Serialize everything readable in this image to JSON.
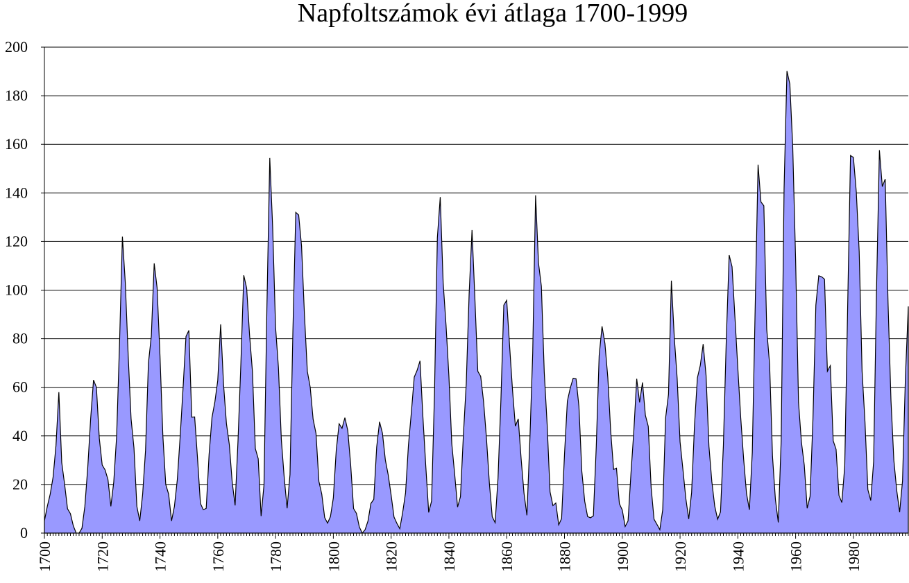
{
  "chart_data": {
    "type": "area",
    "title": "Napfoltszámok évi átlaga 1700-1999",
    "xlabel": "",
    "ylabel": "",
    "xlim": [
      1700,
      1999
    ],
    "ylim": [
      0,
      200
    ],
    "grid": true,
    "legend": "none",
    "fill_color": "#9999ff",
    "line_color": "#000000",
    "x_ticks": [
      1700,
      1720,
      1740,
      1760,
      1780,
      1800,
      1820,
      1840,
      1860,
      1880,
      1900,
      1920,
      1940,
      1960,
      1980
    ],
    "y_ticks": [
      0,
      20,
      40,
      60,
      80,
      100,
      120,
      140,
      160,
      180,
      200
    ],
    "x": [
      1700,
      1701,
      1702,
      1703,
      1704,
      1705,
      1706,
      1707,
      1708,
      1709,
      1710,
      1711,
      1712,
      1713,
      1714,
      1715,
      1716,
      1717,
      1718,
      1719,
      1720,
      1721,
      1722,
      1723,
      1724,
      1725,
      1726,
      1727,
      1728,
      1729,
      1730,
      1731,
      1732,
      1733,
      1734,
      1735,
      1736,
      1737,
      1738,
      1739,
      1740,
      1741,
      1742,
      1743,
      1744,
      1745,
      1746,
      1747,
      1748,
      1749,
      1750,
      1751,
      1752,
      1753,
      1754,
      1755,
      1756,
      1757,
      1758,
      1759,
      1760,
      1761,
      1762,
      1763,
      1764,
      1765,
      1766,
      1767,
      1768,
      1769,
      1770,
      1771,
      1772,
      1773,
      1774,
      1775,
      1776,
      1777,
      1778,
      1779,
      1780,
      1781,
      1782,
      1783,
      1784,
      1785,
      1786,
      1787,
      1788,
      1789,
      1790,
      1791,
      1792,
      1793,
      1794,
      1795,
      1796,
      1797,
      1798,
      1799,
      1800,
      1801,
      1802,
      1803,
      1804,
      1805,
      1806,
      1807,
      1808,
      1809,
      1810,
      1811,
      1812,
      1813,
      1814,
      1815,
      1816,
      1817,
      1818,
      1819,
      1820,
      1821,
      1822,
      1823,
      1824,
      1825,
      1826,
      1827,
      1828,
      1829,
      1830,
      1831,
      1832,
      1833,
      1834,
      1835,
      1836,
      1837,
      1838,
      1839,
      1840,
      1841,
      1842,
      1843,
      1844,
      1845,
      1846,
      1847,
      1848,
      1849,
      1850,
      1851,
      1852,
      1853,
      1854,
      1855,
      1856,
      1857,
      1858,
      1859,
      1860,
      1861,
      1862,
      1863,
      1864,
      1865,
      1866,
      1867,
      1868,
      1869,
      1870,
      1871,
      1872,
      1873,
      1874,
      1875,
      1876,
      1877,
      1878,
      1879,
      1880,
      1881,
      1882,
      1883,
      1884,
      1885,
      1886,
      1887,
      1888,
      1889,
      1890,
      1891,
      1892,
      1893,
      1894,
      1895,
      1896,
      1897,
      1898,
      1899,
      1900,
      1901,
      1902,
      1903,
      1904,
      1905,
      1906,
      1907,
      1908,
      1909,
      1910,
      1911,
      1912,
      1913,
      1914,
      1915,
      1916,
      1917,
      1918,
      1919,
      1920,
      1921,
      1922,
      1923,
      1924,
      1925,
      1926,
      1927,
      1928,
      1929,
      1930,
      1931,
      1932,
      1933,
      1934,
      1935,
      1936,
      1937,
      1938,
      1939,
      1940,
      1941,
      1942,
      1943,
      1944,
      1945,
      1946,
      1947,
      1948,
      1949,
      1950,
      1951,
      1952,
      1953,
      1954,
      1955,
      1956,
      1957,
      1958,
      1959,
      1960,
      1961,
      1962,
      1963,
      1964,
      1965,
      1966,
      1967,
      1968,
      1969,
      1970,
      1971,
      1972,
      1973,
      1974,
      1975,
      1976,
      1977,
      1978,
      1979,
      1980,
      1981,
      1982,
      1983,
      1984,
      1985,
      1986,
      1987,
      1988,
      1989,
      1990,
      1991,
      1992,
      1993,
      1994,
      1995,
      1996,
      1997,
      1998,
      1999
    ],
    "series": [
      {
        "values": [
          5,
          11,
          16,
          23,
          36,
          58,
          29,
          20,
          10,
          8,
          3,
          0,
          0,
          2,
          11,
          27,
          47,
          63,
          60,
          39,
          28,
          26,
          22,
          11,
          21,
          40,
          78,
          122,
          103,
          73,
          47,
          35,
          11,
          5,
          16,
          34,
          70,
          81,
          111,
          101,
          73,
          40,
          20,
          16,
          5,
          11,
          22,
          40,
          60,
          80.9,
          83.4,
          47.7,
          47.8,
          30.7,
          12.2,
          9.6,
          10.2,
          32.4,
          47.6,
          54,
          62.9,
          85.9,
          61.2,
          45.1,
          36.4,
          20.9,
          11.4,
          37.8,
          69.8,
          106.1,
          100.8,
          81.6,
          66.5,
          34.8,
          30.6,
          7,
          19.8,
          92.5,
          154.4,
          125.9,
          84.8,
          68.1,
          38.5,
          22.8,
          10.2,
          24.1,
          82.9,
          132,
          130.9,
          118.1,
          89.9,
          66.6,
          60,
          46.9,
          41,
          21.3,
          16,
          6.4,
          4.1,
          6.8,
          14.5,
          34,
          45,
          43.1,
          47.5,
          42.2,
          28.1,
          10.1,
          8.1,
          2.5,
          0,
          1.4,
          5,
          12.2,
          13.9,
          35.4,
          45.8,
          41.1,
          30.1,
          23.9,
          15.6,
          6.6,
          4,
          1.8,
          8.5,
          16.6,
          36.3,
          49.6,
          64.2,
          67,
          70.9,
          47.8,
          27.5,
          8.5,
          13.2,
          56.9,
          121.5,
          138.3,
          103.2,
          85.7,
          64.6,
          36.7,
          24.2,
          10.7,
          15,
          40.1,
          61.5,
          98.5,
          124.7,
          96.3,
          66.6,
          64.5,
          54.1,
          39,
          20.6,
          6.7,
          4.3,
          22.7,
          54.8,
          93.8,
          95.8,
          77.2,
          59.1,
          44,
          47,
          30.5,
          16.3,
          7.3,
          37.6,
          74,
          139,
          111.2,
          101.6,
          66.2,
          44.7,
          17,
          11.3,
          12.4,
          3.4,
          6,
          32.3,
          54.3,
          59.7,
          63.7,
          63.5,
          52.2,
          25.4,
          13.1,
          6.8,
          6.3,
          7.1,
          35.6,
          73,
          85.1,
          78,
          64,
          41.8,
          26.2,
          26.7,
          12.1,
          9.5,
          2.7,
          5,
          24.4,
          42,
          63.5,
          53.8,
          62,
          48.5,
          43.9,
          18.6,
          5.7,
          3.6,
          1.4,
          9.6,
          47.4,
          57.1,
          103.9,
          80.6,
          63.6,
          37.6,
          26.1,
          14.2,
          5.8,
          16.7,
          44.3,
          63.9,
          69,
          77.8,
          64.9,
          35.7,
          21.2,
          11.1,
          5.7,
          8.7,
          36.1,
          79.7,
          114.4,
          109.6,
          88.8,
          67.8,
          47.5,
          30.6,
          16.3,
          9.6,
          33.2,
          92.6,
          151.6,
          136.3,
          134.7,
          83.9,
          69.4,
          31.5,
          13.9,
          4.4,
          38,
          141.7,
          190.2,
          184.8,
          159,
          112.3,
          53.9,
          37.5,
          27.9,
          10.2,
          15.1,
          47,
          93.8,
          105.9,
          105.5,
          104.5,
          66.6,
          68.9,
          38,
          34.5,
          15.5,
          12.6,
          27.5,
          92.5,
          155.4,
          154.6,
          140.4,
          115.9,
          66.6,
          45.9,
          17.9,
          13.4,
          29.4,
          100.2,
          157.6,
          142.6,
          145.7,
          94.3,
          54.6,
          29.9,
          17.5,
          8.6,
          21.5,
          64.3,
          93.3
        ]
      }
    ]
  }
}
